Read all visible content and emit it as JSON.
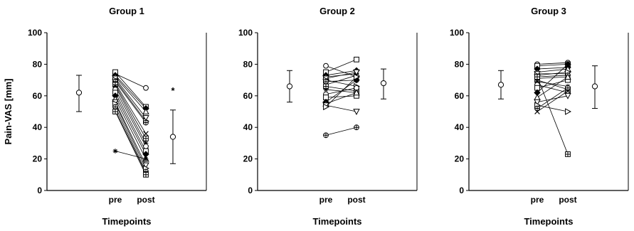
{
  "chart_data": {
    "type": "scatter",
    "shared_ylabel": "Pain-VAS [mm]",
    "ylim": [
      0,
      100
    ],
    "yticks": [
      0,
      20,
      40,
      60,
      80,
      100
    ],
    "xlabel": "Timepoints",
    "xtick_labels": [
      "pre",
      "post"
    ],
    "panels": [
      {
        "title": "Group 1",
        "summary_pre": {
          "mean": 62,
          "low": 50,
          "high": 73
        },
        "summary_post": {
          "mean": 34,
          "low": 17,
          "high": 51
        },
        "asterisk": {
          "label": "*",
          "y": 64
        },
        "lines": [
          [
            74,
            65
          ],
          [
            75,
            53
          ],
          [
            73,
            52
          ],
          [
            72,
            50
          ],
          [
            71,
            46
          ],
          [
            70,
            44
          ],
          [
            69,
            43
          ],
          [
            68,
            36
          ],
          [
            67,
            33
          ],
          [
            66,
            30
          ],
          [
            64,
            28
          ],
          [
            62,
            25
          ],
          [
            60,
            23
          ],
          [
            58,
            20
          ],
          [
            56,
            16
          ],
          [
            55,
            14
          ],
          [
            53,
            12
          ],
          [
            51,
            11
          ],
          [
            50,
            10
          ],
          [
            25,
            20
          ]
        ]
      },
      {
        "title": "Group 2",
        "summary_pre": {
          "mean": 66,
          "low": 56,
          "high": 76
        },
        "summary_post": {
          "mean": 68,
          "low": 58,
          "high": 77
        },
        "asterisk": null,
        "lines": [
          [
            79,
            72
          ],
          [
            75,
            83
          ],
          [
            73,
            76
          ],
          [
            72,
            74
          ],
          [
            71,
            75
          ],
          [
            70,
            66
          ],
          [
            69,
            70
          ],
          [
            67,
            73
          ],
          [
            66,
            63
          ],
          [
            64,
            62
          ],
          [
            61,
            65
          ],
          [
            59,
            60
          ],
          [
            56,
            70
          ],
          [
            55,
            62
          ],
          [
            54,
            50
          ],
          [
            53,
            72
          ],
          [
            35,
            40
          ]
        ]
      },
      {
        "title": "Group 3",
        "summary_pre": {
          "mean": 67,
          "low": 58,
          "high": 76
        },
        "summary_post": {
          "mean": 66,
          "low": 52,
          "high": 79
        },
        "asterisk": null,
        "lines": [
          [
            80,
            81
          ],
          [
            79,
            80
          ],
          [
            77,
            78
          ],
          [
            75,
            77
          ],
          [
            74,
            74
          ],
          [
            73,
            75
          ],
          [
            72,
            73
          ],
          [
            71,
            72
          ],
          [
            70,
            64
          ],
          [
            69,
            66
          ],
          [
            67,
            62
          ],
          [
            65,
            70
          ],
          [
            62,
            80
          ],
          [
            59,
            72
          ],
          [
            56,
            60
          ],
          [
            54,
            50
          ],
          [
            52,
            65
          ],
          [
            50,
            63
          ],
          [
            72,
            23
          ]
        ]
      }
    ]
  }
}
